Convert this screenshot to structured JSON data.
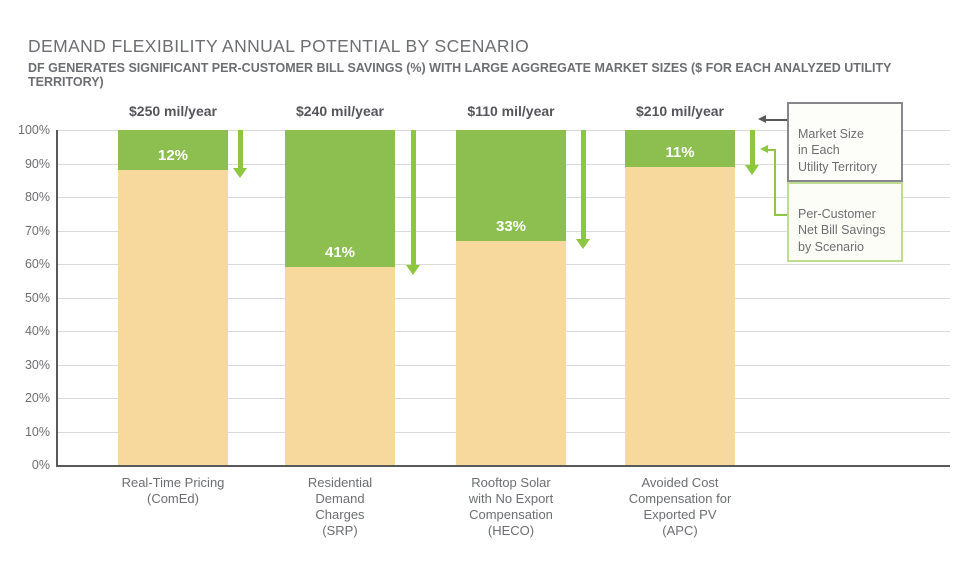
{
  "header": {
    "title": "DEMAND FLEXIBILITY ANNUAL POTENTIAL BY SCENARIO",
    "subtitle": "DF GENERATES SIGNIFICANT PER-CUSTOMER BILL SAVINGS (%) WITH LARGE AGGREGATE MARKET SIZES ($ FOR EACH ANALYZED UTILITY TERRITORY)"
  },
  "chart_data": {
    "type": "bar",
    "stacked": true,
    "title": "DEMAND FLEXIBILITY ANNUAL POTENTIAL BY SCENARIO",
    "categories": [
      "Real-Time Pricing\n(ComEd)",
      "Residential\nDemand\nCharges\n(SRP)",
      "Rooftop Solar\nwith No Export\nCompensation\n(HECO)",
      "Avoided Cost\nCompensation for\nExported PV\n(APC)"
    ],
    "series": [
      {
        "name": "Per-Customer Net Bill Savings by Scenario",
        "values": [
          12,
          41,
          33,
          11
        ],
        "labels": [
          "12%",
          "41%",
          "33%",
          "11%"
        ]
      },
      {
        "name": "remainder",
        "values": [
          88,
          59,
          67,
          89
        ]
      }
    ],
    "market_sizes": [
      "$250 mil/year",
      "$240 mil/year",
      "$110 mil/year",
      "$210 mil/year"
    ],
    "xlabel": "",
    "ylabel": "",
    "ylim": [
      0,
      100
    ],
    "y_ticks": [
      "0%",
      "10%",
      "20%",
      "30%",
      "40%",
      "50%",
      "60%",
      "70%",
      "80%",
      "90%",
      "100%"
    ],
    "grid": true,
    "legend_position": "right"
  },
  "legend": {
    "market_size_label": "Market Size\nin Each\nUtility Territory",
    "savings_label": "Per-Customer\nNet Bill Savings\nby Scenario"
  },
  "colors": {
    "savings_green": "#8cbf4f",
    "arrow_green": "#8dc63f",
    "remainder_tan": "#f7d99e",
    "text_gray": "#6d6e71",
    "dark_gray": "#55565a",
    "axis_gray": "#58595b",
    "gridline_gray": "#dadad7",
    "legend_gray_border": "#85878a",
    "legend_green_border": "#bedc92"
  }
}
